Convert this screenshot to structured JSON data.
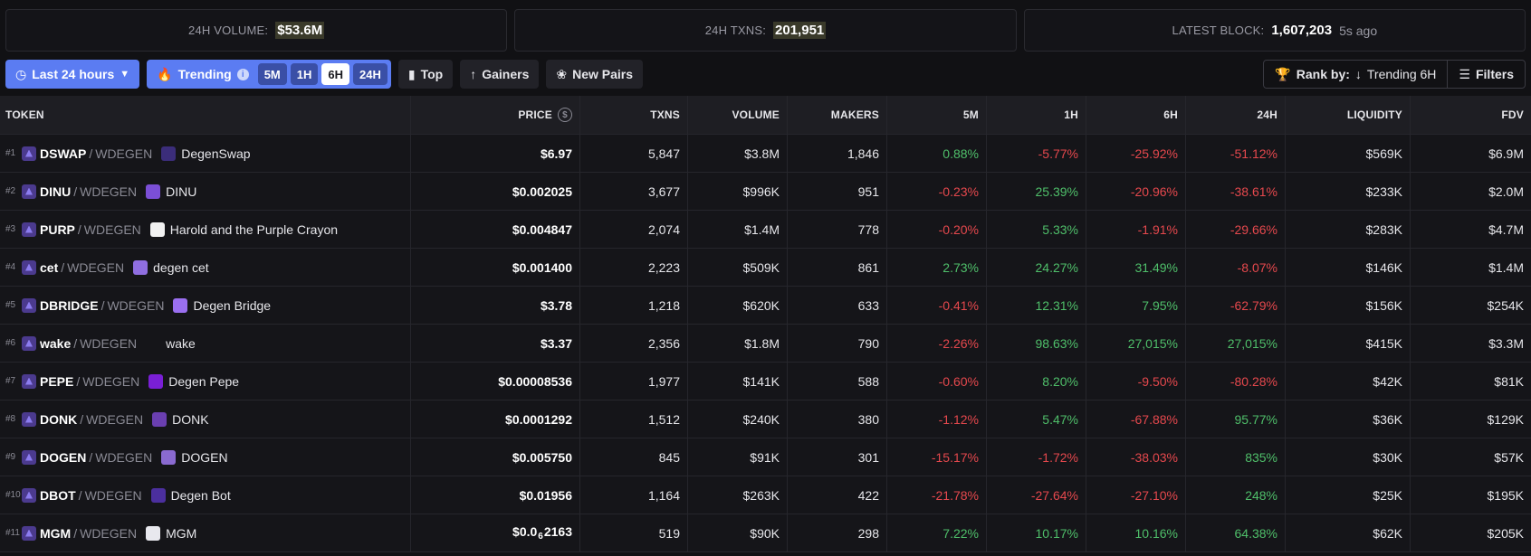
{
  "stats": {
    "volume_label": "24H VOLUME:",
    "volume_value": "$53.6M",
    "txns_label": "24H TXNS:",
    "txns_value": "201,951",
    "block_label": "LATEST BLOCK:",
    "block_value": "1,607,203",
    "block_ago": "5s ago"
  },
  "toolbar": {
    "range_label": "Last 24 hours",
    "trending_label": "Trending",
    "timeframes": [
      "5M",
      "1H",
      "6H",
      "24H"
    ],
    "active_timeframe": "6H",
    "top_label": "Top",
    "gainers_label": "Gainers",
    "new_pairs_label": "New Pairs",
    "rank_by_label": "Rank by:",
    "rank_by_value": "Trending 6H",
    "filters_label": "Filters"
  },
  "colors": {
    "accent": "#5b7cf2",
    "positive": "#4fbf6a",
    "negative": "#e5484d"
  },
  "table": {
    "headers": {
      "token": "TOKEN",
      "price": "PRICE",
      "txns": "TXNS",
      "volume": "VOLUME",
      "makers": "MAKERS",
      "m5": "5M",
      "h1": "1H",
      "h6": "6H",
      "h24": "24H",
      "liquidity": "LIQUIDITY",
      "fdv": "FDV"
    },
    "rows": [
      {
        "rank": "#1",
        "symbol": "DSWAP",
        "quote": "WDEGEN",
        "name": "DegenSwap",
        "icon_color": "#3b2d7a",
        "price": "$6.97",
        "txns": "5,847",
        "volume": "$3.8M",
        "makers": "1,846",
        "m5": "0.88%",
        "h1": "-5.77%",
        "h6": "-25.92%",
        "h24": "-51.12%",
        "liquidity": "$569K",
        "fdv": "$6.9M"
      },
      {
        "rank": "#2",
        "symbol": "DINU",
        "quote": "WDEGEN",
        "name": "DINU",
        "icon_color": "#7b4fd6",
        "price": "$0.002025",
        "txns": "3,677",
        "volume": "$996K",
        "makers": "951",
        "m5": "-0.23%",
        "h1": "25.39%",
        "h6": "-20.96%",
        "h24": "-38.61%",
        "liquidity": "$233K",
        "fdv": "$2.0M"
      },
      {
        "rank": "#3",
        "symbol": "PURP",
        "quote": "WDEGEN",
        "name": "Harold and the Purple Crayon",
        "icon_color": "#f2f2f2",
        "price": "$0.004847",
        "txns": "2,074",
        "volume": "$1.4M",
        "makers": "778",
        "m5": "-0.20%",
        "h1": "5.33%",
        "h6": "-1.91%",
        "h24": "-29.66%",
        "liquidity": "$283K",
        "fdv": "$4.7M"
      },
      {
        "rank": "#4",
        "symbol": "cet",
        "quote": "WDEGEN",
        "name": "degen cet",
        "icon_color": "#8f6ee0",
        "price": "$0.001400",
        "txns": "2,223",
        "volume": "$509K",
        "makers": "861",
        "m5": "2.73%",
        "h1": "24.27%",
        "h6": "31.49%",
        "h24": "-8.07%",
        "liquidity": "$146K",
        "fdv": "$1.4M"
      },
      {
        "rank": "#5",
        "symbol": "DBRIDGE",
        "quote": "WDEGEN",
        "name": "Degen Bridge",
        "icon_color": "#9a6ff0",
        "price": "$3.78",
        "txns": "1,218",
        "volume": "$620K",
        "makers": "633",
        "m5": "-0.41%",
        "h1": "12.31%",
        "h6": "7.95%",
        "h24": "-62.79%",
        "liquidity": "$156K",
        "fdv": "$254K"
      },
      {
        "rank": "#6",
        "symbol": "wake",
        "quote": "WDEGEN",
        "name": "wake",
        "icon_color": "transparent",
        "price": "$3.37",
        "txns": "2,356",
        "volume": "$1.8M",
        "makers": "790",
        "m5": "-2.26%",
        "h1": "98.63%",
        "h6": "27,015%",
        "h24": "27,015%",
        "liquidity": "$415K",
        "fdv": "$3.3M"
      },
      {
        "rank": "#7",
        "symbol": "PEPE",
        "quote": "WDEGEN",
        "name": "Degen Pepe",
        "icon_color": "#7a1fd6",
        "price": "$0.00008536",
        "txns": "1,977",
        "volume": "$141K",
        "makers": "588",
        "m5": "-0.60%",
        "h1": "8.20%",
        "h6": "-9.50%",
        "h24": "-80.28%",
        "liquidity": "$42K",
        "fdv": "$81K"
      },
      {
        "rank": "#8",
        "symbol": "DONK",
        "quote": "WDEGEN",
        "name": "DONK",
        "icon_color": "#6a3fb0",
        "price": "$0.0001292",
        "txns": "1,512",
        "volume": "$240K",
        "makers": "380",
        "m5": "-1.12%",
        "h1": "5.47%",
        "h6": "-67.88%",
        "h24": "95.77%",
        "liquidity": "$36K",
        "fdv": "$129K"
      },
      {
        "rank": "#9",
        "symbol": "DOGEN",
        "quote": "WDEGEN",
        "name": "DOGEN",
        "icon_color": "#8a6ad0",
        "price": "$0.005750",
        "txns": "845",
        "volume": "$91K",
        "makers": "301",
        "m5": "-15.17%",
        "h1": "-1.72%",
        "h6": "-38.03%",
        "h24": "835%",
        "liquidity": "$30K",
        "fdv": "$57K"
      },
      {
        "rank": "#10",
        "symbol": "DBOT",
        "quote": "WDEGEN",
        "name": "Degen Bot",
        "icon_color": "#4b2f9e",
        "price": "$0.01956",
        "txns": "1,164",
        "volume": "$263K",
        "makers": "422",
        "m5": "-21.78%",
        "h1": "-27.64%",
        "h6": "-27.10%",
        "h24": "248%",
        "liquidity": "$25K",
        "fdv": "$195K"
      },
      {
        "rank": "#11",
        "symbol": "MGM",
        "quote": "WDEGEN",
        "name": "MGM",
        "icon_color": "#e8e8ee",
        "price_prefix": "$0.0",
        "price_sub": "6",
        "price_rest": "2163",
        "txns": "519",
        "volume": "$90K",
        "makers": "298",
        "m5": "7.22%",
        "h1": "10.17%",
        "h6": "10.16%",
        "h24": "64.38%",
        "liquidity": "$62K",
        "fdv": "$205K"
      }
    ]
  }
}
